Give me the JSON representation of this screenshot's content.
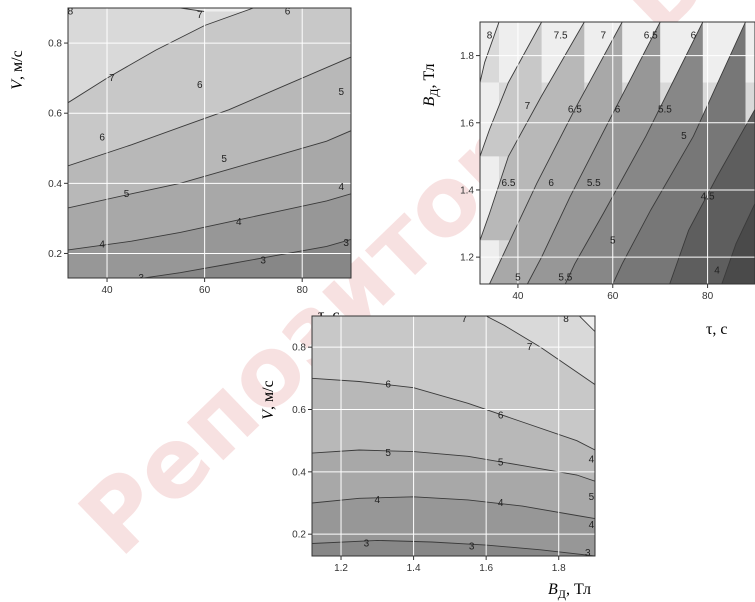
{
  "watermark": "Репозиторий БГТУ",
  "chart_data": [
    {
      "type": "contour",
      "xlabel": "τ, с",
      "ylabel_main": "V",
      "ylabel_unit": ", м/с",
      "xlim": [
        32,
        90
      ],
      "ylim": [
        0.13,
        0.9
      ],
      "xticks": [
        "40",
        "60",
        "80"
      ],
      "yticks": [
        "0.2",
        "0.4",
        "0.6",
        "0.8"
      ],
      "xtick_values": [
        40,
        60,
        80
      ],
      "ytick_values": [
        0.2,
        0.4,
        0.6,
        0.8
      ],
      "levels": [
        {
          "label": "8",
          "points": [
            [
              32,
              0.96
            ],
            [
              45,
              0.92
            ],
            [
              60,
              0.89
            ]
          ]
        },
        {
          "label": "7",
          "points": [
            [
              32,
              0.63
            ],
            [
              40,
              0.7
            ],
            [
              50,
              0.78
            ],
            [
              60,
              0.85
            ],
            [
              70,
              0.9
            ],
            [
              78,
              0.93
            ]
          ]
        },
        {
          "label": "6",
          "points": [
            [
              32,
              0.45
            ],
            [
              45,
              0.51
            ],
            [
              55,
              0.56
            ],
            [
              65,
              0.61
            ],
            [
              75,
              0.67
            ],
            [
              85,
              0.73
            ],
            [
              90,
              0.76
            ]
          ]
        },
        {
          "label": "5",
          "points": [
            [
              32,
              0.33
            ],
            [
              45,
              0.37
            ],
            [
              55,
              0.4
            ],
            [
              65,
              0.44
            ],
            [
              75,
              0.48
            ],
            [
              85,
              0.52
            ],
            [
              90,
              0.55
            ]
          ]
        },
        {
          "label": "4",
          "points": [
            [
              32,
              0.21
            ],
            [
              45,
              0.235
            ],
            [
              55,
              0.26
            ],
            [
              65,
              0.29
            ],
            [
              75,
              0.32
            ],
            [
              85,
              0.35
            ],
            [
              90,
              0.37
            ]
          ]
        },
        {
          "label": "3",
          "points": [
            [
              32,
              0.08
            ],
            [
              45,
              0.125
            ],
            [
              55,
              0.145
            ],
            [
              65,
              0.17
            ],
            [
              75,
              0.195
            ],
            [
              85,
              0.22
            ],
            [
              90,
              0.24
            ]
          ]
        }
      ],
      "contour_labels": [
        {
          "text": "8",
          "x": 32.5,
          "y": 0.89
        },
        {
          "text": "7",
          "x": 59,
          "y": 0.88
        },
        {
          "text": "6",
          "x": 77,
          "y": 0.89
        },
        {
          "text": "7",
          "x": 41,
          "y": 0.7
        },
        {
          "text": "6",
          "x": 59,
          "y": 0.68
        },
        {
          "text": "5",
          "x": 88,
          "y": 0.66
        },
        {
          "text": "6",
          "x": 39,
          "y": 0.53
        },
        {
          "text": "5",
          "x": 64,
          "y": 0.47
        },
        {
          "text": "5",
          "x": 44,
          "y": 0.37
        },
        {
          "text": "4",
          "x": 88,
          "y": 0.39
        },
        {
          "text": "4",
          "x": 39,
          "y": 0.225
        },
        {
          "text": "4",
          "x": 67,
          "y": 0.29
        },
        {
          "text": "3",
          "x": 47,
          "y": 0.13
        },
        {
          "text": "3",
          "x": 72,
          "y": 0.18
        },
        {
          "text": "3",
          "x": 89,
          "y": 0.23
        }
      ]
    },
    {
      "type": "contour",
      "xlabel": "τ, с",
      "ylabel_main": "B",
      "ylabel_sub": "Д",
      "ylabel_unit": ", Тл",
      "xlim": [
        32,
        90
      ],
      "ylim": [
        1.12,
        1.9
      ],
      "xticks": [
        "40",
        "60",
        "80"
      ],
      "yticks": [
        "1.2",
        "1.4",
        "1.6",
        "1.8"
      ],
      "xtick_values": [
        40,
        60,
        80
      ],
      "ytick_values": [
        1.2,
        1.4,
        1.6,
        1.8
      ],
      "levels": [
        {
          "label": "8",
          "points": [
            [
              36,
              1.9
            ],
            [
              33,
              1.78
            ],
            [
              32,
              1.72
            ]
          ]
        },
        {
          "label": "7.5",
          "points": [
            [
              45,
              1.9
            ],
            [
              38,
              1.72
            ],
            [
              34,
              1.58
            ],
            [
              32,
              1.5
            ]
          ]
        },
        {
          "label": "7",
          "points": [
            [
              54,
              1.9
            ],
            [
              45,
              1.68
            ],
            [
              38,
              1.5
            ],
            [
              34,
              1.33
            ],
            [
              32,
              1.25
            ]
          ]
        },
        {
          "label": "6.5",
          "points": [
            [
              62,
              1.9
            ],
            [
              52,
              1.64
            ],
            [
              44,
              1.42
            ],
            [
              38,
              1.24
            ],
            [
              34,
              1.12
            ]
          ]
        },
        {
          "label": "6",
          "points": [
            [
              70,
              1.9
            ],
            [
              59,
              1.6
            ],
            [
              51,
              1.38
            ],
            [
              45,
              1.2
            ],
            [
              42,
              1.12
            ]
          ]
        },
        {
          "label": "5.5",
          "points": [
            [
              79,
              1.9
            ],
            [
              67,
              1.56
            ],
            [
              58,
              1.33
            ],
            [
              52,
              1.18
            ],
            [
              50,
              1.12
            ]
          ]
        },
        {
          "label": "5",
          "points": [
            [
              88,
              1.9
            ],
            [
              77,
              1.56
            ],
            [
              68,
              1.34
            ],
            [
              62,
              1.18
            ],
            [
              60,
              1.12
            ]
          ]
        },
        {
          "label": "4.5",
          "points": [
            [
              90,
              1.64
            ],
            [
              82,
              1.44
            ],
            [
              76,
              1.28
            ],
            [
              72,
              1.12
            ]
          ]
        },
        {
          "label": "4",
          "points": [
            [
              90,
              1.36
            ],
            [
              86,
              1.24
            ],
            [
              83,
              1.12
            ]
          ]
        }
      ],
      "contour_labels": [
        {
          "text": "8",
          "x": 34,
          "y": 1.86
        },
        {
          "text": "7.5",
          "x": 49,
          "y": 1.86
        },
        {
          "text": "7",
          "x": 58,
          "y": 1.86
        },
        {
          "text": "6.5",
          "x": 68,
          "y": 1.86
        },
        {
          "text": "6",
          "x": 77,
          "y": 1.86
        },
        {
          "text": "7",
          "x": 42,
          "y": 1.65
        },
        {
          "text": "6.5",
          "x": 52,
          "y": 1.64
        },
        {
          "text": "6",
          "x": 61,
          "y": 1.64
        },
        {
          "text": "5.5",
          "x": 71,
          "y": 1.64
        },
        {
          "text": "5",
          "x": 75,
          "y": 1.56
        },
        {
          "text": "6.5",
          "x": 38,
          "y": 1.42
        },
        {
          "text": "6",
          "x": 47,
          "y": 1.42
        },
        {
          "text": "5.5",
          "x": 56,
          "y": 1.42
        },
        {
          "text": "4.5",
          "x": 80,
          "y": 1.38
        },
        {
          "text": "5",
          "x": 60,
          "y": 1.25
        },
        {
          "text": "4",
          "x": 82,
          "y": 1.16
        },
        {
          "text": "5",
          "x": 40,
          "y": 1.14
        },
        {
          "text": "5.5",
          "x": 50,
          "y": 1.14
        }
      ]
    },
    {
      "type": "contour",
      "xlabel_main": "B",
      "xlabel_sub": "Д",
      "xlabel_unit": ", Тл",
      "ylabel_main": "V",
      "ylabel_unit": ", м/с",
      "xlim": [
        1.12,
        1.9
      ],
      "ylim": [
        0.13,
        0.9
      ],
      "xticks": [
        "1.2",
        "1.4",
        "1.6",
        "1.8"
      ],
      "yticks": [
        "0.2",
        "0.4",
        "0.6",
        "0.8"
      ],
      "xtick_values": [
        1.2,
        1.4,
        1.6,
        1.8
      ],
      "ytick_values": [
        0.2,
        0.4,
        0.6,
        0.8
      ],
      "levels": [
        {
          "label": "8",
          "points": [
            [
              1.84,
              0.92
            ],
            [
              1.9,
              0.85
            ]
          ]
        },
        {
          "label": "7",
          "points": [
            [
              1.55,
              0.93
            ],
            [
              1.65,
              0.87
            ],
            [
              1.75,
              0.8
            ],
            [
              1.85,
              0.72
            ],
            [
              1.9,
              0.68
            ]
          ]
        },
        {
          "label": "6",
          "points": [
            [
              1.12,
              0.7
            ],
            [
              1.25,
              0.69
            ],
            [
              1.4,
              0.67
            ],
            [
              1.55,
              0.62
            ],
            [
              1.7,
              0.56
            ],
            [
              1.85,
              0.5
            ],
            [
              1.9,
              0.47
            ]
          ]
        },
        {
          "label": "5",
          "points": [
            [
              1.12,
              0.46
            ],
            [
              1.25,
              0.47
            ],
            [
              1.4,
              0.465
            ],
            [
              1.55,
              0.45
            ],
            [
              1.7,
              0.42
            ],
            [
              1.85,
              0.39
            ],
            [
              1.9,
              0.37
            ]
          ]
        },
        {
          "label": "4",
          "points": [
            [
              1.12,
              0.3
            ],
            [
              1.25,
              0.315
            ],
            [
              1.4,
              0.32
            ],
            [
              1.55,
              0.31
            ],
            [
              1.7,
              0.29
            ],
            [
              1.85,
              0.26
            ],
            [
              1.9,
              0.25
            ]
          ]
        },
        {
          "label": "3",
          "points": [
            [
              1.12,
              0.17
            ],
            [
              1.3,
              0.18
            ],
            [
              1.45,
              0.175
            ],
            [
              1.6,
              0.165
            ],
            [
              1.75,
              0.15
            ],
            [
              1.9,
              0.13
            ]
          ]
        }
      ],
      "contour_labels": [
        {
          "text": "7",
          "x": 1.54,
          "y": 0.89
        },
        {
          "text": "8",
          "x": 1.82,
          "y": 0.89
        },
        {
          "text": "7",
          "x": 1.72,
          "y": 0.8
        },
        {
          "text": "6",
          "x": 1.33,
          "y": 0.68
        },
        {
          "text": "6",
          "x": 1.64,
          "y": 0.58
        },
        {
          "text": "5",
          "x": 1.33,
          "y": 0.46
        },
        {
          "text": "5",
          "x": 1.64,
          "y": 0.43
        },
        {
          "text": "4",
          "x": 1.89,
          "y": 0.44
        },
        {
          "text": "4",
          "x": 1.3,
          "y": 0.31
        },
        {
          "text": "4",
          "x": 1.64,
          "y": 0.3
        },
        {
          "text": "5",
          "x": 1.89,
          "y": 0.32
        },
        {
          "text": "3",
          "x": 1.27,
          "y": 0.17
        },
        {
          "text": "3",
          "x": 1.56,
          "y": 0.16
        },
        {
          "text": "3",
          "x": 1.88,
          "y": 0.14
        },
        {
          "text": "4",
          "x": 1.89,
          "y": 0.23
        }
      ]
    }
  ]
}
